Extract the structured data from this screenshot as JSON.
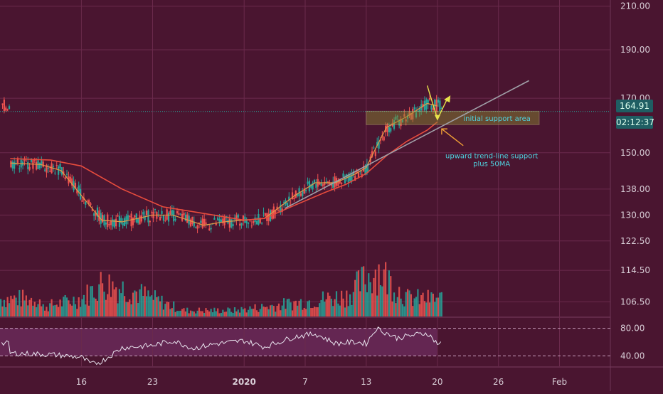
{
  "chart_data": {
    "type": "candlestick",
    "title": "",
    "price_scale": "log",
    "price_axis": {
      "ticks": [
        "210.00",
        "190.00",
        "170.00",
        "150.00",
        "138.00",
        "130.00",
        "122.50",
        "114.50",
        "106.50"
      ],
      "range": [
        103,
        213
      ]
    },
    "x_axis": {
      "ticks": [
        "16",
        "23",
        "2020",
        "7",
        "13",
        "20",
        "26",
        "Feb"
      ],
      "start": "2019-12-08T00:00",
      "end": "2020-02-06T00:00"
    },
    "rsi_axis": {
      "ticks": [
        "80.00",
        "40.00"
      ],
      "range": [
        25,
        95
      ]
    },
    "last_price": "164.91",
    "countdown": "02:12:37",
    "colors": {
      "up": "#26a69a",
      "down": "#ef5350",
      "ma_fast": "#e39b46",
      "ma_slow": "#e84c3d",
      "rsi": "#e8e3ee",
      "volume_ma": "#4b90b8"
    },
    "series": [
      {
        "name": "EMA fast",
        "type": "line",
        "data": [
          [
            "2019-12-09",
            146.5
          ],
          [
            "2019-12-12",
            146
          ],
          [
            "2019-12-14",
            144
          ],
          [
            "2019-12-16",
            136
          ],
          [
            "2019-12-18",
            128.5
          ],
          [
            "2019-12-20",
            128
          ],
          [
            "2019-12-23",
            130
          ],
          [
            "2019-12-25",
            130
          ],
          [
            "2019-12-28",
            127
          ],
          [
            "2019-12-30",
            128
          ],
          [
            "2020-01-01",
            128.5
          ],
          [
            "2020-01-03",
            129
          ],
          [
            "2020-01-06",
            136
          ],
          [
            "2020-01-08",
            140
          ],
          [
            "2020-01-10",
            140
          ],
          [
            "2020-01-12",
            143
          ],
          [
            "2020-01-13",
            145
          ],
          [
            "2020-01-14",
            152
          ],
          [
            "2020-01-15",
            159
          ],
          [
            "2020-01-17",
            163
          ],
          [
            "2020-01-19",
            168
          ],
          [
            "2020-01-20",
            167
          ]
        ]
      },
      {
        "name": "MA 50",
        "type": "line",
        "data": [
          [
            "2019-12-09",
            148
          ],
          [
            "2019-12-13",
            147.5
          ],
          [
            "2019-12-16",
            145.5
          ],
          [
            "2019-12-20",
            138
          ],
          [
            "2019-12-24",
            132.5
          ],
          [
            "2019-12-28",
            130.5
          ],
          [
            "2020-01-01",
            128.5
          ],
          [
            "2020-01-03",
            129
          ],
          [
            "2020-01-06",
            133
          ],
          [
            "2020-01-09",
            137
          ],
          [
            "2020-01-11",
            139.5
          ],
          [
            "2020-01-13",
            143
          ],
          [
            "2020-01-15",
            149
          ],
          [
            "2020-01-17",
            154
          ],
          [
            "2020-01-19",
            158
          ],
          [
            "2020-01-20",
            161
          ]
        ]
      },
      {
        "name": "RSI",
        "type": "line",
        "data": [
          [
            "2019-12-09",
            44
          ],
          [
            "2019-12-13",
            42
          ],
          [
            "2019-12-16",
            38
          ],
          [
            "2019-12-17",
            28
          ],
          [
            "2019-12-18",
            32
          ],
          [
            "2019-12-20",
            52
          ],
          [
            "2019-12-23",
            55
          ],
          [
            "2019-12-25",
            62
          ],
          [
            "2019-12-27",
            51
          ],
          [
            "2019-12-29",
            57
          ],
          [
            "2020-01-01",
            62
          ],
          [
            "2020-01-03",
            53
          ],
          [
            "2020-01-06",
            68
          ],
          [
            "2020-01-08",
            72
          ],
          [
            "2020-01-10",
            58
          ],
          [
            "2020-01-12",
            60
          ],
          [
            "2020-01-13",
            58
          ],
          [
            "2020-01-14",
            80
          ],
          [
            "2020-01-16",
            66
          ],
          [
            "2020-01-18",
            71
          ],
          [
            "2020-01-19",
            73
          ],
          [
            "2020-01-20",
            58
          ]
        ]
      },
      {
        "name": "Volume",
        "type": "bar",
        "data": [
          [
            "2019-12-12",
            1.5
          ],
          [
            "2019-12-16",
            3
          ],
          [
            "2019-12-18",
            5.5
          ],
          [
            "2019-12-21",
            4.2
          ],
          [
            "2019-12-26",
            1
          ],
          [
            "2019-12-31",
            1
          ],
          [
            "2020-01-04",
            1.8
          ],
          [
            "2020-01-11",
            3.4
          ],
          [
            "2020-01-14",
            7.8
          ],
          [
            "2020-01-17",
            3
          ],
          [
            "2020-01-19",
            2.9
          ]
        ]
      }
    ],
    "annotations": [
      {
        "type": "zone",
        "label": "initial support area",
        "price_range": [
          160,
          165
        ],
        "date_range": [
          "2020-01-13",
          "2020-01-30"
        ]
      },
      {
        "type": "trendline",
        "from": [
          "2020-01-05",
          132
        ],
        "to": [
          "2020-01-29",
          177
        ]
      },
      {
        "type": "arrows",
        "direction": "down-then-up",
        "points": [
          [
            "2020-01-19",
            175
          ],
          [
            "2020-01-20",
            162
          ],
          [
            "2020-01-21",
            170
          ]
        ]
      },
      {
        "type": "arrow",
        "label": "upward trend-line support\nplus 50MA",
        "from": [
          "2020-01-21",
          156
        ],
        "to": [
          "2020-01-20",
          160
        ]
      }
    ]
  }
}
